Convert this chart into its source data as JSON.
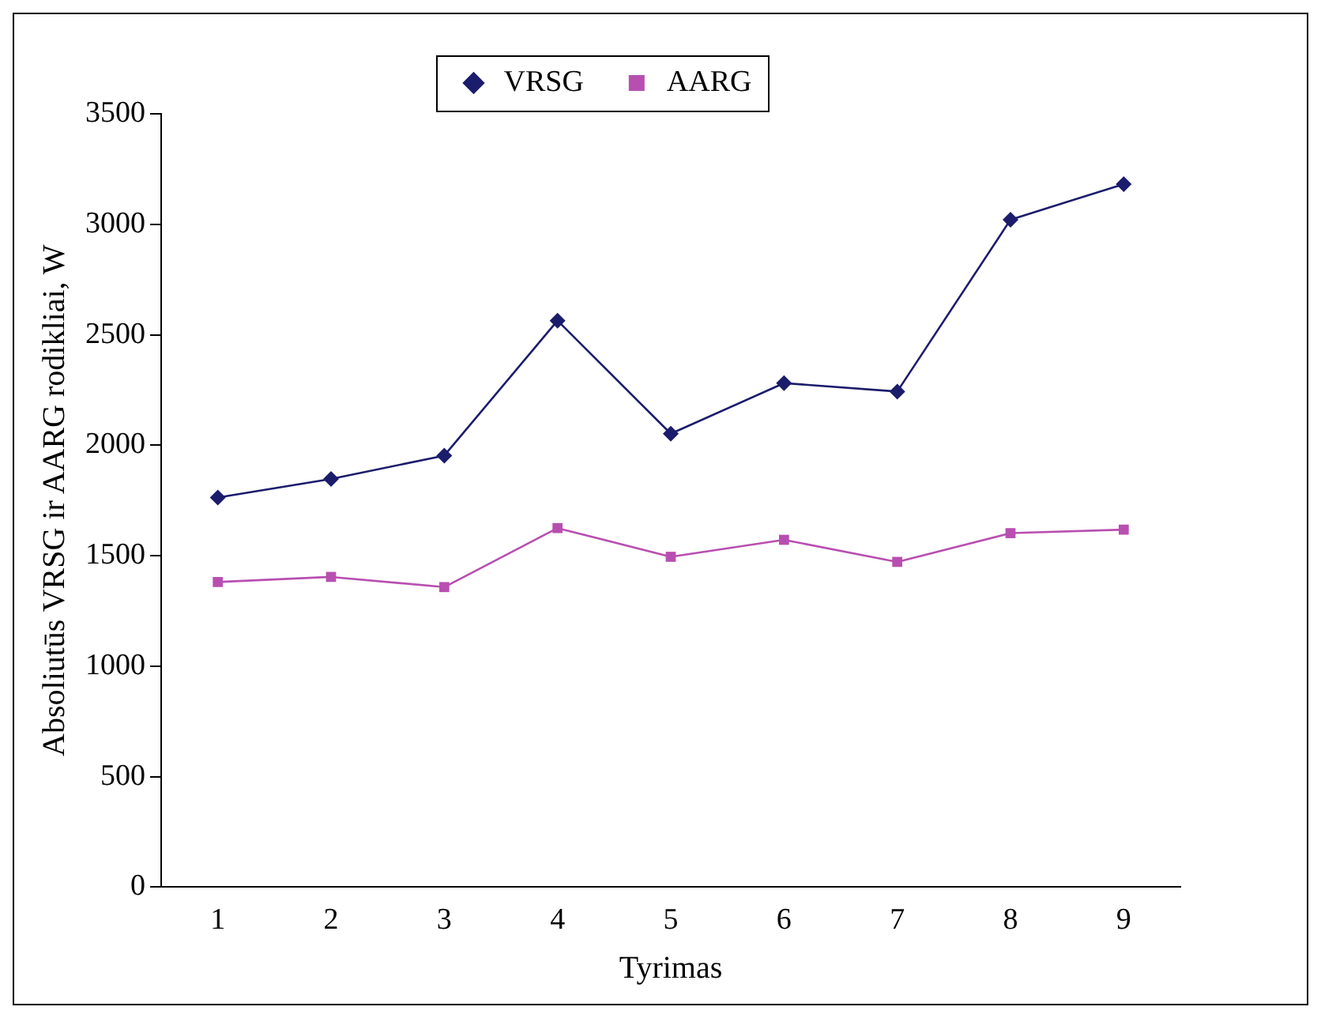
{
  "chart_data": {
    "type": "line",
    "xlabel": "Tyrimas",
    "ylabel": "Absoliutūs VRSG ir AARG rodikliai, W",
    "categories": [
      "1",
      "2",
      "3",
      "4",
      "5",
      "6",
      "7",
      "8",
      "9"
    ],
    "series": [
      {
        "name": "VRSG",
        "color": "#1c1c6c",
        "marker": "diamond",
        "values": [
          1763,
          1847,
          1953,
          2564,
          2052,
          2281,
          2243,
          3021,
          3182
        ]
      },
      {
        "name": "AARG",
        "color": "#b84fb0",
        "marker": "square",
        "values": [
          1381,
          1404,
          1358,
          1625,
          1495,
          1572,
          1472,
          1602,
          1618
        ]
      }
    ],
    "ylim": [
      0,
      3500
    ],
    "yticks": [
      0,
      500,
      1000,
      1500,
      2000,
      2500,
      3000,
      3500
    ],
    "grid": false,
    "legend": "top",
    "line_style": "solid"
  }
}
